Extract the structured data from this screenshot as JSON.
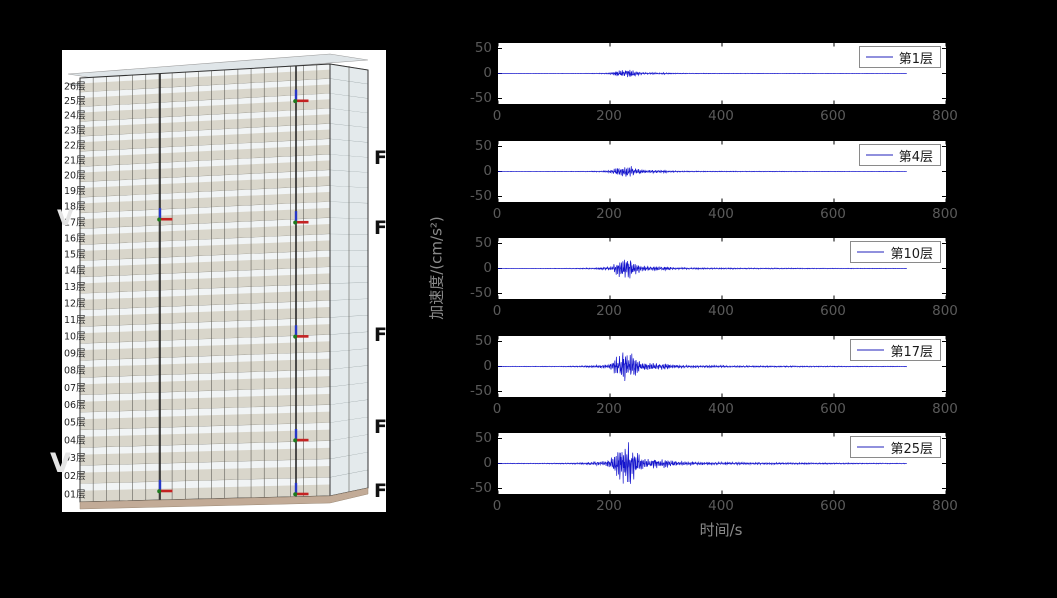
{
  "axes": {
    "xlabel": "时间/s",
    "ylabel": "加速度/(cm/s²)",
    "x_ticks": [
      0,
      200,
      400,
      600,
      800
    ],
    "y_ticks": [
      50,
      0,
      -50
    ],
    "xlim": [
      0,
      800
    ],
    "ylim": [
      -61,
      61
    ],
    "tick_color": "#5a5a5a",
    "label_color": "#8a8a8a"
  },
  "chart_data": [
    {
      "type": "line",
      "legend": "第1层",
      "line_color": "#1414cc",
      "xlim": [
        0,
        800
      ],
      "ylim": [
        -61,
        61
      ],
      "x_ticks": [
        0,
        200,
        400,
        600,
        800
      ],
      "y_ticks": [
        50,
        0,
        -50
      ],
      "signal": {
        "t_end": 730,
        "main_burst": [
          205,
          265
        ],
        "peak_amplitude": 8.1,
        "envelope": [
          [
            0,
            0.1
          ],
          [
            60,
            0.13
          ],
          [
            120,
            0.18
          ],
          [
            150,
            0.32
          ],
          [
            175,
            0.63
          ],
          [
            195,
            1.1
          ],
          [
            205,
            2.5
          ],
          [
            215,
            6.1
          ],
          [
            228,
            8.1
          ],
          [
            238,
            7.2
          ],
          [
            248,
            4.0
          ],
          [
            258,
            2.2
          ],
          [
            268,
            1.6
          ],
          [
            278,
            1.9
          ],
          [
            288,
            1.4
          ],
          [
            298,
            1.8
          ],
          [
            308,
            1.1
          ],
          [
            320,
            0.8
          ],
          [
            340,
            0.6
          ],
          [
            370,
            0.5
          ],
          [
            400,
            0.5
          ],
          [
            440,
            0.4
          ],
          [
            480,
            0.4
          ],
          [
            520,
            0.3
          ],
          [
            560,
            0.3
          ],
          [
            600,
            0.2
          ],
          [
            650,
            0.2
          ],
          [
            700,
            0.15
          ],
          [
            730,
            0.1
          ]
        ]
      }
    },
    {
      "type": "line",
      "legend": "第4层",
      "line_color": "#1414cc",
      "xlim": [
        0,
        800
      ],
      "ylim": [
        -61,
        61
      ],
      "x_ticks": [
        0,
        200,
        400,
        600,
        800
      ],
      "y_ticks": [
        50,
        0,
        -50
      ],
      "signal": {
        "t_end": 730,
        "main_burst": [
          205,
          265
        ],
        "peak_amplitude": 13.1,
        "envelope": [
          [
            0,
            0.15
          ],
          [
            60,
            0.2
          ],
          [
            120,
            0.3
          ],
          [
            150,
            0.5
          ],
          [
            175,
            1.0
          ],
          [
            195,
            1.7
          ],
          [
            205,
            4.1
          ],
          [
            215,
            9.9
          ],
          [
            228,
            13.1
          ],
          [
            238,
            11.6
          ],
          [
            248,
            6.4
          ],
          [
            258,
            3.5
          ],
          [
            268,
            2.6
          ],
          [
            278,
            3.0
          ],
          [
            288,
            2.3
          ],
          [
            298,
            2.9
          ],
          [
            308,
            1.7
          ],
          [
            320,
            1.3
          ],
          [
            340,
            1.0
          ],
          [
            370,
            0.9
          ],
          [
            400,
            0.8
          ],
          [
            440,
            0.6
          ],
          [
            480,
            0.6
          ],
          [
            520,
            0.5
          ],
          [
            560,
            0.4
          ],
          [
            600,
            0.4
          ],
          [
            650,
            0.3
          ],
          [
            700,
            0.2
          ],
          [
            730,
            0.2
          ]
        ]
      }
    },
    {
      "type": "line",
      "legend": "第10层",
      "line_color": "#1414cc",
      "xlim": [
        0,
        800
      ],
      "ylim": [
        -61,
        61
      ],
      "x_ticks": [
        0,
        200,
        400,
        600,
        800
      ],
      "y_ticks": [
        50,
        0,
        -50
      ],
      "signal": {
        "t_end": 730,
        "main_burst": [
          205,
          265
        ],
        "peak_amplitude": 21.6,
        "envelope": [
          [
            0,
            0.2
          ],
          [
            60,
            0.3
          ],
          [
            120,
            0.5
          ],
          [
            150,
            0.9
          ],
          [
            175,
            1.7
          ],
          [
            195,
            2.9
          ],
          [
            205,
            6.7
          ],
          [
            215,
            16.3
          ],
          [
            228,
            21.6
          ],
          [
            238,
            19.2
          ],
          [
            248,
            10.6
          ],
          [
            258,
            5.8
          ],
          [
            268,
            4.3
          ],
          [
            278,
            5.0
          ],
          [
            288,
            3.8
          ],
          [
            298,
            4.8
          ],
          [
            308,
            2.9
          ],
          [
            320,
            2.2
          ],
          [
            340,
            1.7
          ],
          [
            370,
            1.4
          ],
          [
            400,
            1.2
          ],
          [
            440,
            1.1
          ],
          [
            480,
            1.0
          ],
          [
            520,
            0.9
          ],
          [
            560,
            0.7
          ],
          [
            600,
            0.6
          ],
          [
            650,
            0.5
          ],
          [
            700,
            0.4
          ],
          [
            730,
            0.3
          ]
        ]
      }
    },
    {
      "type": "line",
      "legend": "第17层",
      "line_color": "#1414cc",
      "xlim": [
        0,
        800
      ],
      "ylim": [
        -61,
        61
      ],
      "x_ticks": [
        0,
        200,
        400,
        600,
        800
      ],
      "y_ticks": [
        50,
        0,
        -50
      ],
      "signal": {
        "t_end": 730,
        "main_burst": [
          205,
          265
        ],
        "peak_amplitude": 32.4,
        "envelope": [
          [
            0,
            0.4
          ],
          [
            60,
            0.5
          ],
          [
            120,
            0.7
          ],
          [
            150,
            1.3
          ],
          [
            175,
            2.5
          ],
          [
            195,
            4.3
          ],
          [
            205,
            10.1
          ],
          [
            215,
            24.5
          ],
          [
            228,
            32.4
          ],
          [
            238,
            28.8
          ],
          [
            248,
            15.8
          ],
          [
            258,
            8.6
          ],
          [
            268,
            6.5
          ],
          [
            278,
            7.6
          ],
          [
            288,
            5.8
          ],
          [
            298,
            7.2
          ],
          [
            308,
            4.3
          ],
          [
            320,
            3.2
          ],
          [
            340,
            2.5
          ],
          [
            370,
            2.2
          ],
          [
            400,
            1.9
          ],
          [
            440,
            1.6
          ],
          [
            480,
            1.4
          ],
          [
            520,
            1.3
          ],
          [
            560,
            1.1
          ],
          [
            600,
            0.9
          ],
          [
            650,
            0.7
          ],
          [
            700,
            0.6
          ],
          [
            730,
            0.4
          ]
        ]
      }
    },
    {
      "type": "line",
      "legend": "第25层",
      "line_color": "#1414cc",
      "xlim": [
        0,
        800
      ],
      "ylim": [
        -61,
        61
      ],
      "x_ticks": [
        0,
        200,
        400,
        600,
        800
      ],
      "y_ticks": [
        50,
        0,
        -50
      ],
      "signal": {
        "t_end": 730,
        "main_burst": [
          205,
          265
        ],
        "peak_amplitude": 45.0,
        "envelope": [
          [
            0,
            0.5
          ],
          [
            60,
            0.7
          ],
          [
            120,
            1.0
          ],
          [
            150,
            1.8
          ],
          [
            175,
            3.5
          ],
          [
            195,
            6.0
          ],
          [
            205,
            14.0
          ],
          [
            215,
            34.0
          ],
          [
            228,
            45.0
          ],
          [
            238,
            40.0
          ],
          [
            248,
            22.0
          ],
          [
            258,
            12.0
          ],
          [
            268,
            9.0
          ],
          [
            278,
            10.5
          ],
          [
            288,
            8.0
          ],
          [
            298,
            10.0
          ],
          [
            308,
            6.0
          ],
          [
            320,
            4.5
          ],
          [
            340,
            3.5
          ],
          [
            370,
            3.0
          ],
          [
            400,
            2.6
          ],
          [
            440,
            2.2
          ],
          [
            480,
            2.0
          ],
          [
            520,
            1.8
          ],
          [
            560,
            1.5
          ],
          [
            600,
            1.3
          ],
          [
            650,
            1.0
          ],
          [
            700,
            0.8
          ],
          [
            730,
            0.6
          ]
        ]
      }
    }
  ],
  "building": {
    "floors": [
      "26层",
      "25层",
      "24层",
      "23层",
      "22层",
      "21层",
      "20层",
      "19层",
      "18层",
      "17层",
      "16层",
      "15层",
      "14层",
      "13层",
      "12层",
      "11层",
      "10层",
      "09层",
      "08层",
      "07层",
      "06层",
      "05层",
      "04层",
      "03层",
      "02层",
      "01层"
    ],
    "sensor_markers": [
      {
        "floor": 25,
        "col": "right"
      },
      {
        "floor": 17,
        "col": "left"
      },
      {
        "floor": 17,
        "col": "right"
      },
      {
        "floor": 10,
        "col": "right"
      },
      {
        "floor": 4,
        "col": "right"
      },
      {
        "floor": 1,
        "col": "left"
      },
      {
        "floor": 1,
        "col": "right"
      }
    ],
    "marker_colors": {
      "x_axis": "#c42222",
      "z_axis": "#2636c6",
      "origin": "#1e7a1e"
    },
    "colors": {
      "background": "#ffffff",
      "wall_band": "#d9d6cb",
      "glass_band": "#f1f4f5",
      "side_face": "#e4eaec",
      "roof": "#ccd4d8",
      "ground_slab": "#c2ab97",
      "grid_line": "#55544e",
      "column": "#1c1c1c",
      "label": "#1f1f1f"
    }
  },
  "fragments": {
    "left": [
      {
        "text": "V"
      },
      {
        "text": "V"
      }
    ],
    "right": [
      {
        "text": "F"
      },
      {
        "text": "F"
      },
      {
        "text": "F"
      },
      {
        "text": "F"
      },
      {
        "text": "F"
      }
    ]
  }
}
